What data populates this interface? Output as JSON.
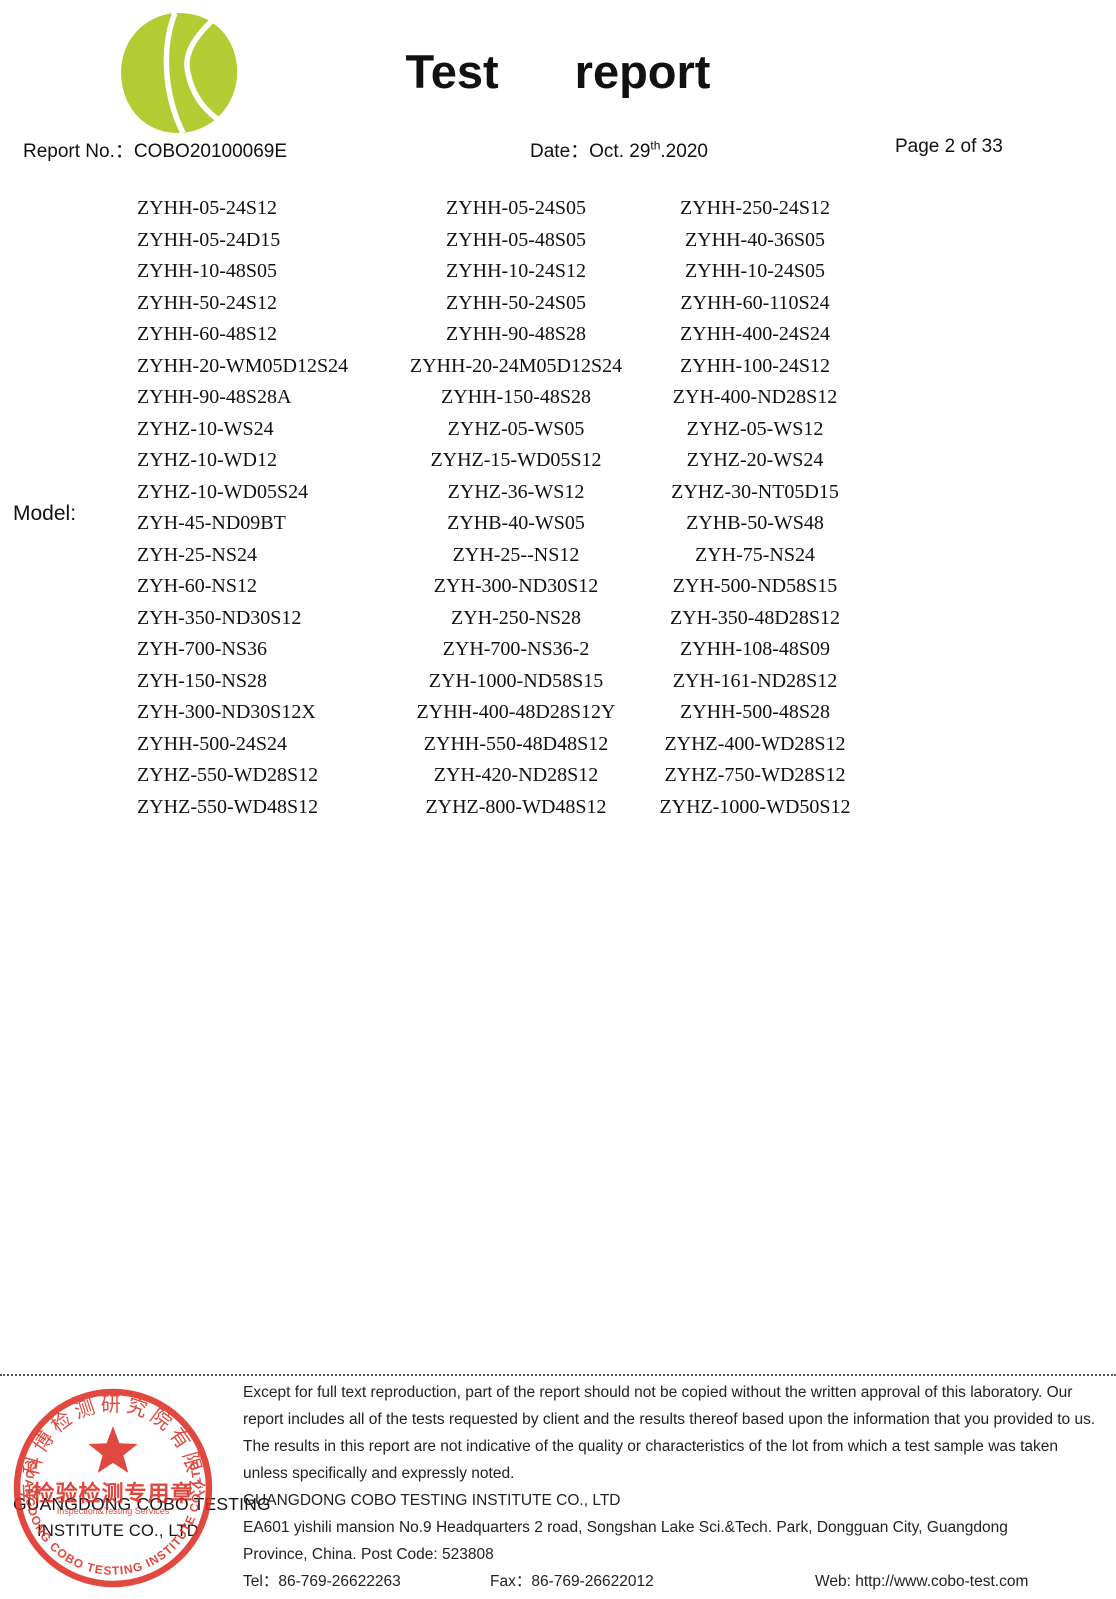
{
  "header": {
    "title_words": [
      "Test",
      "report"
    ],
    "report_no_label": "Report No.：",
    "report_no": "COBO20100069E",
    "date_label": "Date：",
    "date_prefix": "Oct. 29",
    "date_superscript": "th",
    "date_suffix": ".2020",
    "page": "Page 2 of 33"
  },
  "model": {
    "label": "Model:",
    "rows": [
      [
        "ZYHH-05-24S12",
        "ZYHH-05-24S05",
        "ZYHH-250-24S12"
      ],
      [
        "ZYHH-05-24D15",
        "ZYHH-05-48S05",
        "ZYHH-40-36S05"
      ],
      [
        "ZYHH-10-48S05",
        "ZYHH-10-24S12",
        "ZYHH-10-24S05"
      ],
      [
        "ZYHH-50-24S12",
        "ZYHH-50-24S05",
        "ZYHH-60-110S24"
      ],
      [
        "ZYHH-60-48S12",
        "ZYHH-90-48S28",
        "ZYHH-400-24S24"
      ],
      [
        "ZYHH-20-WM05D12S24",
        "ZYHH-20-24M05D12S24",
        "ZYHH-100-24S12"
      ],
      [
        "ZYHH-90-48S28A",
        "ZYHH-150-48S28",
        "ZYH-400-ND28S12"
      ],
      [
        "ZYHZ-10-WS24",
        "ZYHZ-05-WS05",
        "ZYHZ-05-WS12"
      ],
      [
        "ZYHZ-10-WD12",
        "ZYHZ-15-WD05S12",
        "ZYHZ-20-WS24"
      ],
      [
        "ZYHZ-10-WD05S24",
        "ZYHZ-36-WS12",
        "ZYHZ-30-NT05D15"
      ],
      [
        "ZYH-45-ND09BT",
        "ZYHB-40-WS05",
        "ZYHB-50-WS48"
      ],
      [
        "ZYH-25-NS24",
        "ZYH-25--NS12",
        "ZYH-75-NS24"
      ],
      [
        "ZYH-60-NS12",
        "ZYH-300-ND30S12",
        "ZYH-500-ND58S15"
      ],
      [
        "ZYH-350-ND30S12",
        "ZYH-250-NS28",
        "ZYH-350-48D28S12"
      ],
      [
        "ZYH-700-NS36",
        "ZYH-700-NS36-2",
        "ZYHH-108-48S09"
      ],
      [
        "ZYH-150-NS28",
        "ZYH-1000-ND58S15",
        "ZYH-161-ND28S12"
      ],
      [
        "ZYH-300-ND30S12X",
        "ZYHH-400-48D28S12Y",
        "ZYHH-500-48S28"
      ],
      [
        "ZYHH-500-24S24",
        "ZYHH-550-48D48S12",
        "ZYHZ-400-WD28S12"
      ],
      [
        "ZYHZ-550-WD28S12",
        "ZYH-420-ND28S12",
        "ZYHZ-750-WD28S12"
      ],
      [
        "ZYHZ-550-WD48S12",
        "ZYHZ-800-WD48S12",
        "ZYHZ-1000-WD50S12"
      ]
    ]
  },
  "footer": {
    "disclaimer_lines": [
      "Except for full text reproduction, part of the report should not be copied without the written approval of this laboratory. Our",
      "report includes all of the tests requested by client and the results thereof based upon the information that you provided to us.",
      "The results in this report are not indicative of the quality or characteristics of the lot from which a test sample was taken",
      "unless specifically and expressly noted."
    ],
    "company_name": "GUANGDONG COBO TESTING INSTITUTE CO., LTD",
    "address_line1": "EA601 yishili mansion No.9 Headquarters 2 road, Songshan Lake Sci.&Tech. Park, Dongguan City, Guangdong",
    "address_line2": "Province, China. Post Code: 523808",
    "tel_label": "Tel：",
    "tel": "86-769-26622263",
    "fax_label": "Fax：",
    "fax": "86-769-26622012",
    "web_label": "Web: ",
    "web": "http://www.cobo-test.com"
  },
  "stamp": {
    "chinese_arc_text": "广东科博检测研究院有限公司",
    "chinese_center_text": "检验检测专用章",
    "small_red_text": "Inspection&Testing Services",
    "black_line1": "GUANGDONG COBO TESTING",
    "black_line2": "INSTITUTE CO., LTD",
    "english_arc_text": "GUANGDONG COBO TESTING INSTITUTE CO.,LTD"
  },
  "colors": {
    "logo_green": "#b3cc33",
    "stamp_red": "#dd2f26"
  }
}
